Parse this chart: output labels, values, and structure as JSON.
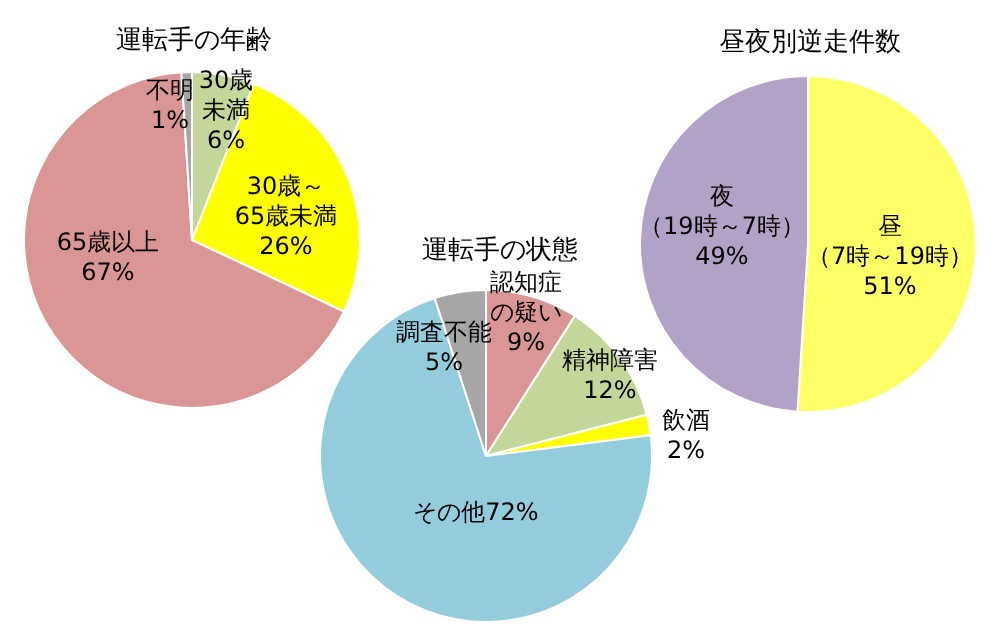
{
  "chart_data": [
    {
      "type": "pie",
      "title": "運転手の年齢",
      "categories": [
        "30歳未満",
        "30歳～65歳未満",
        "65歳以上",
        "不明"
      ],
      "values": [
        6,
        26,
        67,
        1
      ],
      "colors": [
        "#c4d79b",
        "#ffff00",
        "#d99694",
        "#a6a6a6"
      ],
      "value_labels": [
        "6%",
        "26%",
        "67%",
        "1%"
      ]
    },
    {
      "type": "pie",
      "title": "運転手の状態",
      "categories": [
        "認知症の疑い",
        "精神障害",
        "飲酒",
        "その他",
        "調査不能"
      ],
      "values": [
        9,
        12,
        2,
        72,
        5
      ],
      "colors": [
        "#d99694",
        "#c4d79b",
        "#ffff00",
        "#93cddd",
        "#a6a6a6"
      ],
      "value_labels": [
        "9%",
        "12%",
        "2%",
        "72%",
        "5%"
      ]
    },
    {
      "type": "pie",
      "title": "昼夜別逆走件数",
      "categories": [
        "昼（7時～19時）",
        "夜（19時～7時）"
      ],
      "values": [
        51,
        49
      ],
      "colors": [
        "#ffff66",
        "#b3a2c7"
      ],
      "value_labels": [
        "51%",
        "49%"
      ]
    }
  ]
}
